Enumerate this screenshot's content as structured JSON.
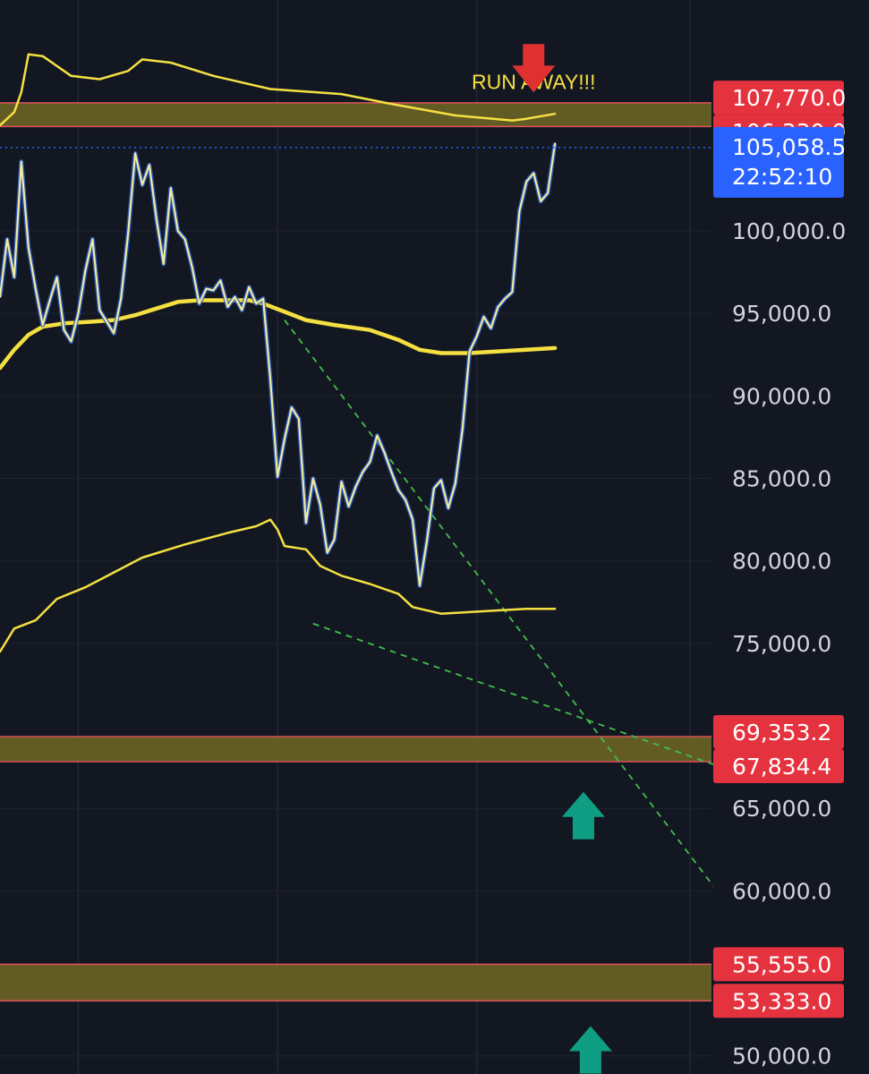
{
  "chart_data": {
    "type": "line",
    "title": "",
    "instrument_hint": "",
    "y_axis": {
      "min": 48900,
      "max": 114000,
      "ticks": [
        50000,
        60000,
        65000,
        75000,
        80000,
        85000,
        90000,
        95000,
        100000
      ],
      "tick_labels": [
        "50,000.0",
        "60,000.0",
        "65,000.0",
        "75,000.0",
        "80,000.0",
        "85,000.0",
        "90,000.0",
        "95,000.0",
        "100,000.0"
      ]
    },
    "x_axis": {
      "min": 0,
      "max": 100,
      "labels": []
    },
    "grid": true,
    "current_price": {
      "value": 105058.5,
      "label": "105,058.5",
      "countdown": "22:52:10"
    },
    "zones": [
      {
        "upper": 107770.0,
        "lower": 106330.0,
        "upper_label": "107,770.0",
        "lower_label": "106,330.0"
      },
      {
        "upper": 69353.2,
        "lower": 67834.4,
        "upper_label": "69,353.2",
        "lower_label": "67,834.4"
      },
      {
        "upper": 55555.0,
        "lower": 53333.0,
        "upper_label": "55,555.0",
        "lower_label": "53,333.0"
      }
    ],
    "annotation": {
      "text": "RUN AWAY!!!",
      "x": 75,
      "y": 108600
    },
    "arrows": [
      {
        "direction": "down",
        "color": "#e03131",
        "x": 75,
        "y": 108400
      },
      {
        "direction": "up",
        "color": "#0f9d84",
        "x": 82,
        "y": 66000
      },
      {
        "direction": "up",
        "color": "#0f9d84",
        "x": 83,
        "y": 51800
      }
    ],
    "series": [
      {
        "color": "#f5e042",
        "points": [
          [
            0,
            106400
          ],
          [
            2,
            107200
          ],
          [
            3,
            108400
          ],
          [
            4,
            110700
          ],
          [
            6,
            110600
          ],
          [
            10,
            109400
          ],
          [
            14,
            109200
          ],
          [
            18,
            109700
          ],
          [
            20,
            110400
          ],
          [
            24,
            110200
          ],
          [
            30,
            109400
          ],
          [
            38,
            108600
          ],
          [
            48,
            108300
          ],
          [
            55,
            107700
          ],
          [
            64,
            107000
          ],
          [
            72,
            106700
          ],
          [
            74,
            106800
          ],
          [
            78,
            107100
          ]
        ]
      },
      {
        "color": "#f5e042",
        "points": [
          [
            0,
            91700
          ],
          [
            2,
            92800
          ],
          [
            4,
            93700
          ],
          [
            6,
            94200
          ],
          [
            9,
            94400
          ],
          [
            13,
            94500
          ],
          [
            16,
            94600
          ],
          [
            19,
            94900
          ],
          [
            22,
            95300
          ],
          [
            25,
            95700
          ],
          [
            28,
            95800
          ],
          [
            31,
            95800
          ],
          [
            35,
            95800
          ],
          [
            37,
            95600
          ],
          [
            40,
            95100
          ],
          [
            43,
            94600
          ],
          [
            47,
            94300
          ],
          [
            52,
            94000
          ],
          [
            56,
            93400
          ],
          [
            59,
            92800
          ],
          [
            62,
            92600
          ],
          [
            66,
            92600
          ],
          [
            70,
            92700
          ],
          [
            74,
            92800
          ],
          [
            78,
            92900
          ]
        ]
      },
      {
        "color": "#f5e042",
        "points": [
          [
            0,
            74500
          ],
          [
            2,
            75900
          ],
          [
            5,
            76400
          ],
          [
            8,
            77700
          ],
          [
            12,
            78400
          ],
          [
            16,
            79300
          ],
          [
            20,
            80200
          ],
          [
            26,
            81000
          ],
          [
            32,
            81700
          ],
          [
            36,
            82100
          ],
          [
            38,
            82500
          ],
          [
            39,
            81900
          ],
          [
            40,
            80900
          ],
          [
            43,
            80700
          ],
          [
            45,
            79700
          ],
          [
            48,
            79100
          ],
          [
            52,
            78600
          ],
          [
            56,
            78000
          ],
          [
            58,
            77200
          ],
          [
            62,
            76800
          ],
          [
            66,
            76900
          ],
          [
            70,
            77000
          ],
          [
            74,
            77100
          ],
          [
            78,
            77100
          ]
        ]
      },
      {
        "color": "#f2ec9a",
        "points": [
          [
            0,
            96000
          ],
          [
            1,
            99500
          ],
          [
            2,
            97200
          ],
          [
            3,
            104200
          ],
          [
            4,
            99000
          ],
          [
            5,
            96500
          ],
          [
            6,
            94300
          ],
          [
            7,
            95800
          ],
          [
            8,
            97200
          ],
          [
            9,
            94000
          ],
          [
            10,
            93300
          ],
          [
            11,
            95000
          ],
          [
            12,
            97600
          ],
          [
            13,
            99500
          ],
          [
            14,
            95200
          ],
          [
            15,
            94500
          ],
          [
            16,
            93800
          ],
          [
            17,
            95900
          ],
          [
            18,
            99800
          ],
          [
            19,
            104700
          ],
          [
            20,
            102800
          ],
          [
            21,
            104000
          ],
          [
            22,
            100700
          ],
          [
            23,
            98000
          ],
          [
            24,
            102600
          ],
          [
            25,
            100000
          ],
          [
            26,
            99500
          ],
          [
            27,
            97800
          ],
          [
            28,
            95600
          ],
          [
            29,
            96500
          ],
          [
            30,
            96400
          ],
          [
            31,
            97000
          ],
          [
            32,
            95400
          ],
          [
            33,
            96000
          ],
          [
            34,
            95200
          ],
          [
            35,
            96600
          ],
          [
            36,
            95600
          ],
          [
            37,
            95900
          ],
          [
            38,
            91000
          ],
          [
            39,
            85100
          ],
          [
            40,
            87400
          ],
          [
            41,
            89300
          ],
          [
            42,
            88600
          ],
          [
            43,
            82300
          ],
          [
            44,
            85000
          ],
          [
            45,
            83400
          ],
          [
            46,
            80500
          ],
          [
            47,
            81300
          ],
          [
            48,
            84800
          ],
          [
            49,
            83300
          ],
          [
            50,
            84500
          ],
          [
            51,
            85400
          ],
          [
            52,
            86000
          ],
          [
            53,
            87600
          ],
          [
            54,
            86600
          ],
          [
            55,
            85400
          ],
          [
            56,
            84300
          ],
          [
            57,
            83700
          ],
          [
            58,
            82500
          ],
          [
            59,
            78500
          ],
          [
            60,
            81200
          ],
          [
            61,
            84400
          ],
          [
            62,
            84900
          ],
          [
            63,
            83200
          ],
          [
            64,
            84700
          ],
          [
            65,
            88000
          ],
          [
            66,
            92700
          ],
          [
            67,
            93600
          ],
          [
            68,
            94800
          ],
          [
            69,
            94100
          ],
          [
            70,
            95400
          ],
          [
            71,
            95900
          ],
          [
            72,
            96300
          ],
          [
            73,
            101200
          ],
          [
            74,
            103000
          ],
          [
            75,
            103500
          ],
          [
            76,
            101800
          ],
          [
            77,
            102300
          ],
          [
            78,
            105300
          ]
        ]
      }
    ],
    "trendlines": [
      {
        "color": "#3fbf4a",
        "from": [
          40,
          94600
        ],
        "to": [
          102,
          59300
        ]
      },
      {
        "color": "#3fbf4a",
        "from": [
          44,
          76200
        ],
        "to": [
          102,
          67400
        ]
      }
    ]
  }
}
